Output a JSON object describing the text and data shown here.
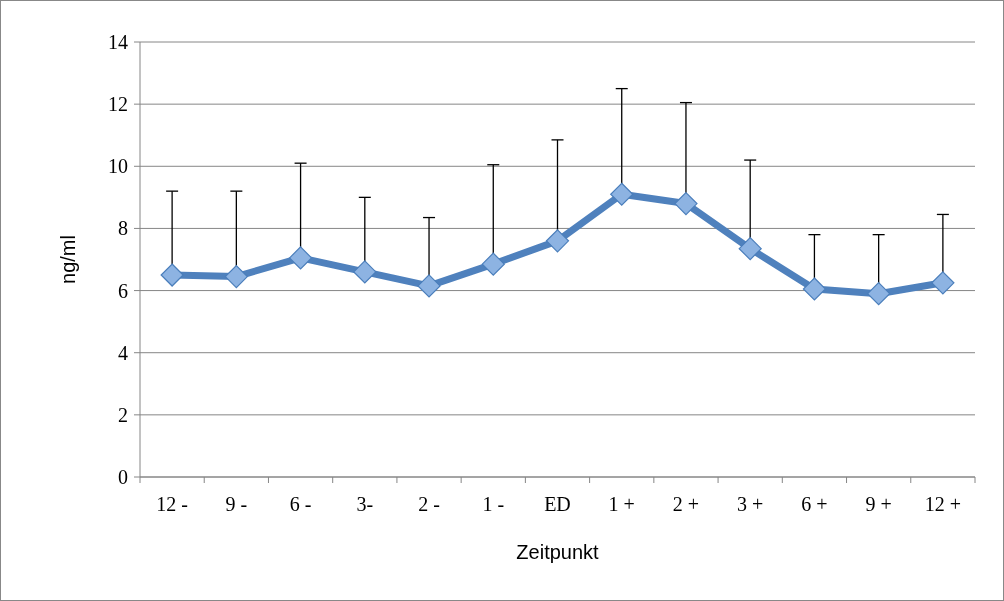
{
  "chart_data": {
    "type": "line",
    "xlabel": "Zeitpunkt",
    "ylabel": "ng/ml",
    "categories": [
      "12 -",
      "9 -",
      "6 -",
      "3-",
      "2 -",
      "1 -",
      "ED",
      "1 +",
      "2 +",
      "3 +",
      "6 +",
      "9 +",
      "12 +"
    ],
    "series": [
      {
        "color": "#4f81bd",
        "values": [
          6.5,
          6.45,
          7.05,
          6.6,
          6.15,
          6.85,
          7.6,
          9.1,
          8.8,
          7.35,
          6.05,
          5.9,
          6.25
        ],
        "errors": [
          [
            6.5,
            9.2
          ],
          [
            6.45,
            9.2
          ],
          [
            7.05,
            10.1
          ],
          [
            6.6,
            9.0
          ],
          [
            6.15,
            8.35
          ],
          [
            6.85,
            10.05
          ],
          [
            7.6,
            10.85
          ],
          [
            9.1,
            12.5
          ],
          [
            8.8,
            12.05
          ],
          [
            7.35,
            10.2
          ],
          [
            6.05,
            7.8
          ],
          [
            5.9,
            7.8
          ],
          [
            6.25,
            8.45
          ]
        ]
      }
    ],
    "ylim": [
      0,
      14
    ],
    "yticks": [
      0,
      2,
      4,
      6,
      8,
      10,
      12,
      14
    ],
    "grid": "y",
    "marker": "diamond",
    "line_style": "solid"
  }
}
